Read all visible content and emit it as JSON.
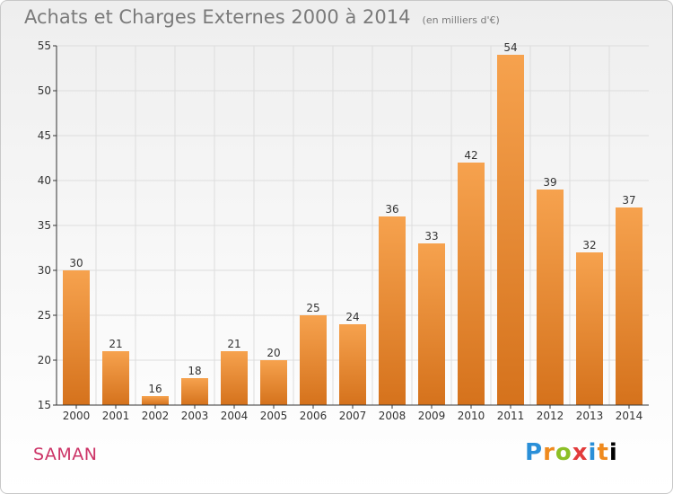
{
  "title": "Achats et Charges Externes 2000 à 2014",
  "subtitle": "(en milliers d'€)",
  "place": "SAMAN",
  "logo": [
    "P",
    "r",
    "o",
    "x",
    "i",
    "t",
    "i"
  ],
  "colors": {
    "bar_top": "#f6a24e",
    "bar_bottom": "#d5721c",
    "grid": "#dddddd",
    "axis": "#333333",
    "text": "#333333"
  },
  "chart_data": {
    "type": "bar",
    "categories": [
      "2000",
      "2001",
      "2002",
      "2003",
      "2004",
      "2005",
      "2006",
      "2007",
      "2008",
      "2009",
      "2010",
      "2011",
      "2012",
      "2013",
      "2014"
    ],
    "values": [
      30,
      21,
      16,
      18,
      21,
      20,
      25,
      24,
      36,
      33,
      42,
      54,
      39,
      32,
      37
    ],
    "title": "Achats et Charges Externes 2000 à 2014",
    "subtitle": "(en milliers d'€)",
    "xlabel": "",
    "ylabel": "",
    "ylim": [
      15,
      55
    ],
    "yticks": [
      15,
      20,
      25,
      30,
      35,
      40,
      45,
      50,
      55
    ],
    "grid": true,
    "data_labels": true
  }
}
